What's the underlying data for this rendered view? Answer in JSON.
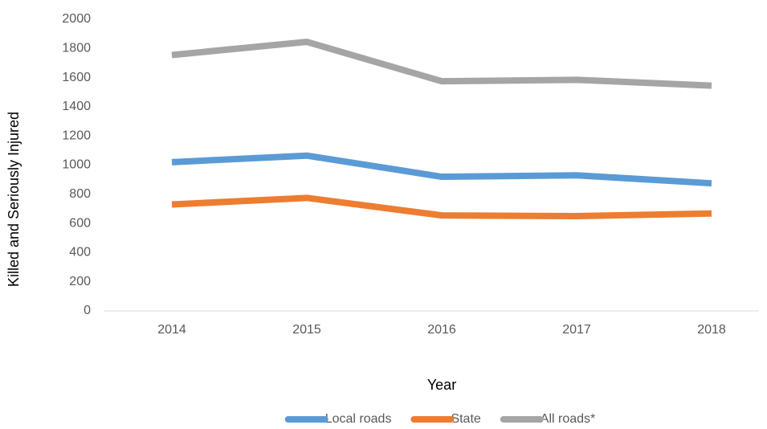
{
  "chart_data": {
    "type": "line",
    "x_label": "Year",
    "y_label": "Killed and Seriously Injured",
    "categories": [
      "2014",
      "2015",
      "2016",
      "2017",
      "2018"
    ],
    "series": [
      {
        "name": "Local roads",
        "color": "#5b9bd5",
        "values": [
          1020,
          1065,
          920,
          930,
          875
        ]
      },
      {
        "name": "State",
        "color": "#ed7d31",
        "values": [
          730,
          775,
          655,
          650,
          668
        ]
      },
      {
        "name": "All roads*",
        "color": "#a5a5a5",
        "values": [
          1755,
          1845,
          1575,
          1585,
          1545
        ]
      }
    ],
    "ylim": [
      0,
      2000
    ],
    "yticks": [
      0,
      200,
      400,
      600,
      800,
      1000,
      1200,
      1400,
      1600,
      1800,
      2000
    ],
    "grid": false,
    "legend": "bottom"
  }
}
